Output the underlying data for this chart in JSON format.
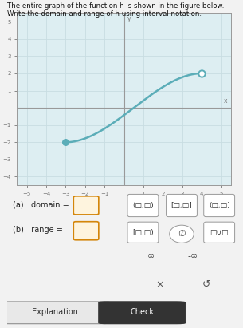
{
  "title_line1": "The entire graph of the function h is shown in the figure below.",
  "title_line2": "Write the domain and range of h using interval notation.",
  "x_start": -3,
  "x_end": 4,
  "y_start": -2,
  "y_end": 2,
  "curve_color": "#5badb8",
  "dot_color": "#5badb8",
  "xlim": [
    -5.5,
    5.5
  ],
  "ylim": [
    -4.5,
    5.5
  ],
  "xticks": [
    -5,
    -4,
    -3,
    -2,
    -1,
    1,
    2,
    3,
    4,
    5
  ],
  "yticks": [
    -4,
    -3,
    -2,
    -1,
    1,
    2,
    3,
    4,
    5
  ],
  "grid_color": "#c8dde2",
  "axis_color": "#999999",
  "tick_color": "#777777",
  "background_color": "#ddeef2",
  "fig_bg": "#f2f2f2",
  "dot_size": 5.5,
  "line_width": 1.8,
  "label_a": "(a)   domain =",
  "label_b": "(b)   range =",
  "row1": [
    "(□,□)",
    "[□,□]",
    "(□,□]"
  ],
  "row2": [
    "[□,□)",
    "∅",
    "□∪□"
  ],
  "row3": [
    "∞",
    "-∞"
  ],
  "row4": [
    "×",
    "↺"
  ]
}
